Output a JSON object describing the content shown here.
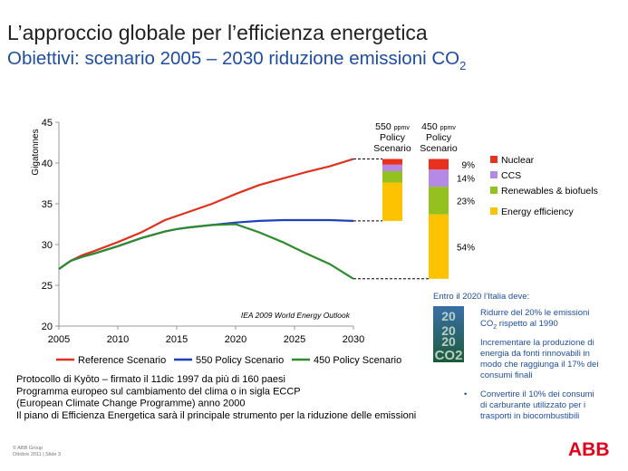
{
  "header": {
    "title": "L’approccio globale per l’efficienza energetica",
    "subtitle": {
      "text": "Obiettivi: scenario 2005 – 2030 riduzione emissioni CO",
      "sub": "2"
    }
  },
  "chart_data": {
    "type": "line",
    "y_label": "Gigatonnes",
    "source": "IEA 2009 World Energy Outlook",
    "x": [
      2005,
      2006,
      2007,
      2008,
      2010,
      2012,
      2014,
      2015,
      2016,
      2018,
      2020,
      2022,
      2024,
      2025,
      2026,
      2028,
      2030
    ],
    "xlim": [
      2005,
      2030
    ],
    "xticks": [
      2005,
      2010,
      2015,
      2020,
      2025,
      2030
    ],
    "ylim": [
      20,
      45
    ],
    "yticks": [
      20,
      25,
      30,
      35,
      40,
      45
    ],
    "legend": "bottom",
    "series": [
      {
        "name": "Reference Scenario",
        "color": "#e0301e",
        "values": [
          27,
          28,
          28.7,
          29.2,
          30.3,
          31.5,
          33,
          33.5,
          34,
          35,
          36.2,
          37.3,
          38.1,
          38.5,
          38.9,
          39.6,
          40.5
        ]
      },
      {
        "name": "550 Policy Scenario",
        "color": "#1f3fbf",
        "values": [
          27,
          28,
          28.5,
          28.9,
          29.8,
          30.8,
          31.6,
          31.9,
          32.1,
          32.4,
          32.7,
          32.9,
          33,
          33,
          33,
          33,
          32.9
        ]
      },
      {
        "name": "450 Policy Scenario",
        "color": "#2e8b2e",
        "values": [
          27,
          28,
          28.5,
          28.9,
          29.8,
          30.8,
          31.6,
          31.9,
          32.1,
          32.4,
          32.5,
          31.5,
          30.3,
          29.6,
          28.9,
          27.6,
          25.8
        ]
      }
    ],
    "segments": [
      {
        "name": "Nuclear",
        "color": "#e8321e"
      },
      {
        "name": "CCS",
        "color": "#b48ae6"
      },
      {
        "name": "Renewables & biofuels",
        "color": "#95c11f"
      },
      {
        "name": "Energy efficiency",
        "color": "#fdc300"
      }
    ],
    "bars": [
      {
        "label": [
          "550",
          "ppmv",
          "Policy",
          "Scenario"
        ],
        "values": [
          0.7,
          0.8,
          1.4,
          4.7
        ]
      },
      {
        "label": [
          "450",
          "ppmv",
          "Policy",
          "Scenario"
        ],
        "values": [
          1.3,
          2.1,
          3.4,
          7.9
        ],
        "share_labels": [
          "9%",
          "14%",
          "23%",
          "54%"
        ]
      }
    ]
  },
  "sidebar": {
    "heading": "Entro il 2020 l’Italia deve:",
    "badge": [
      "20",
      "20",
      "20",
      "CO2"
    ],
    "items": [
      {
        "lines": [
          {
            "text": "Ridurre del  20% le emissioni"
          },
          {
            "text": "CO",
            "sub": "2",
            "rest": " rispetto al 1990"
          }
        ]
      },
      {
        "lines": [
          {
            "text": "Incrementare la produzione di"
          },
          {
            "text": "energia da fonti rinnovabili in"
          },
          {
            "text": "modo che raggiunga il 17% dei"
          },
          {
            "text": "consumi finali"
          }
        ]
      },
      {
        "lines": [
          {
            "text": "Convertire il 10% dei consumi"
          },
          {
            "text": "di carburante utilizzato per i"
          },
          {
            "text": "trasporti in biocombustibili"
          }
        ]
      }
    ]
  },
  "notes": [
    "Protocollo di Kyōto – firmato il 11dic 1997 da più di 160 paesi",
    "Programma europeo sul cambiamento del clima o in sigla ECCP",
    "(European Climate Change Programme) anno 2000",
    "Il piano di Efficienza Energetica sarà il principale strumento per la riduzione delle emissioni"
  ],
  "footer": [
    "© ABB Group",
    "Ottobre 2011 | Slide 3"
  ],
  "logo": "ABB"
}
